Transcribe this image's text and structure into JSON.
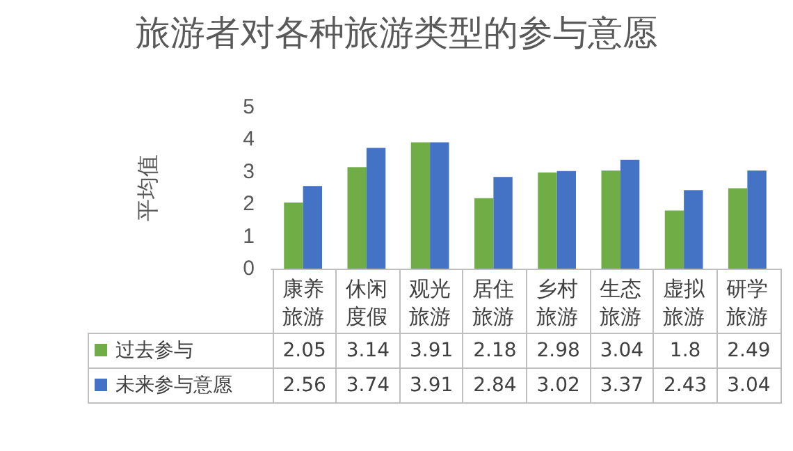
{
  "chart_data": {
    "type": "bar",
    "title": "旅游者对各种旅游类型的参与意愿",
    "ylabel": "平均值",
    "categories": [
      "康养旅游",
      "休闲度假",
      "观光旅游",
      "居住旅游",
      "乡村旅游",
      "生态旅游",
      "虚拟旅游",
      "研学旅游"
    ],
    "series": [
      {
        "name": "过去参与",
        "color": "#70ad47",
        "values": [
          2.05,
          3.14,
          3.91,
          2.18,
          2.98,
          3.04,
          1.8,
          2.49
        ]
      },
      {
        "name": "未来参与意愿",
        "color": "#4472c4",
        "values": [
          2.56,
          3.74,
          3.91,
          2.84,
          3.02,
          3.37,
          2.43,
          3.04
        ]
      }
    ],
    "ylim": [
      0,
      5
    ],
    "yticks": [
      0,
      1,
      2,
      3,
      4,
      5
    ],
    "grid": false,
    "legend": "bottom",
    "data_labels": true
  }
}
